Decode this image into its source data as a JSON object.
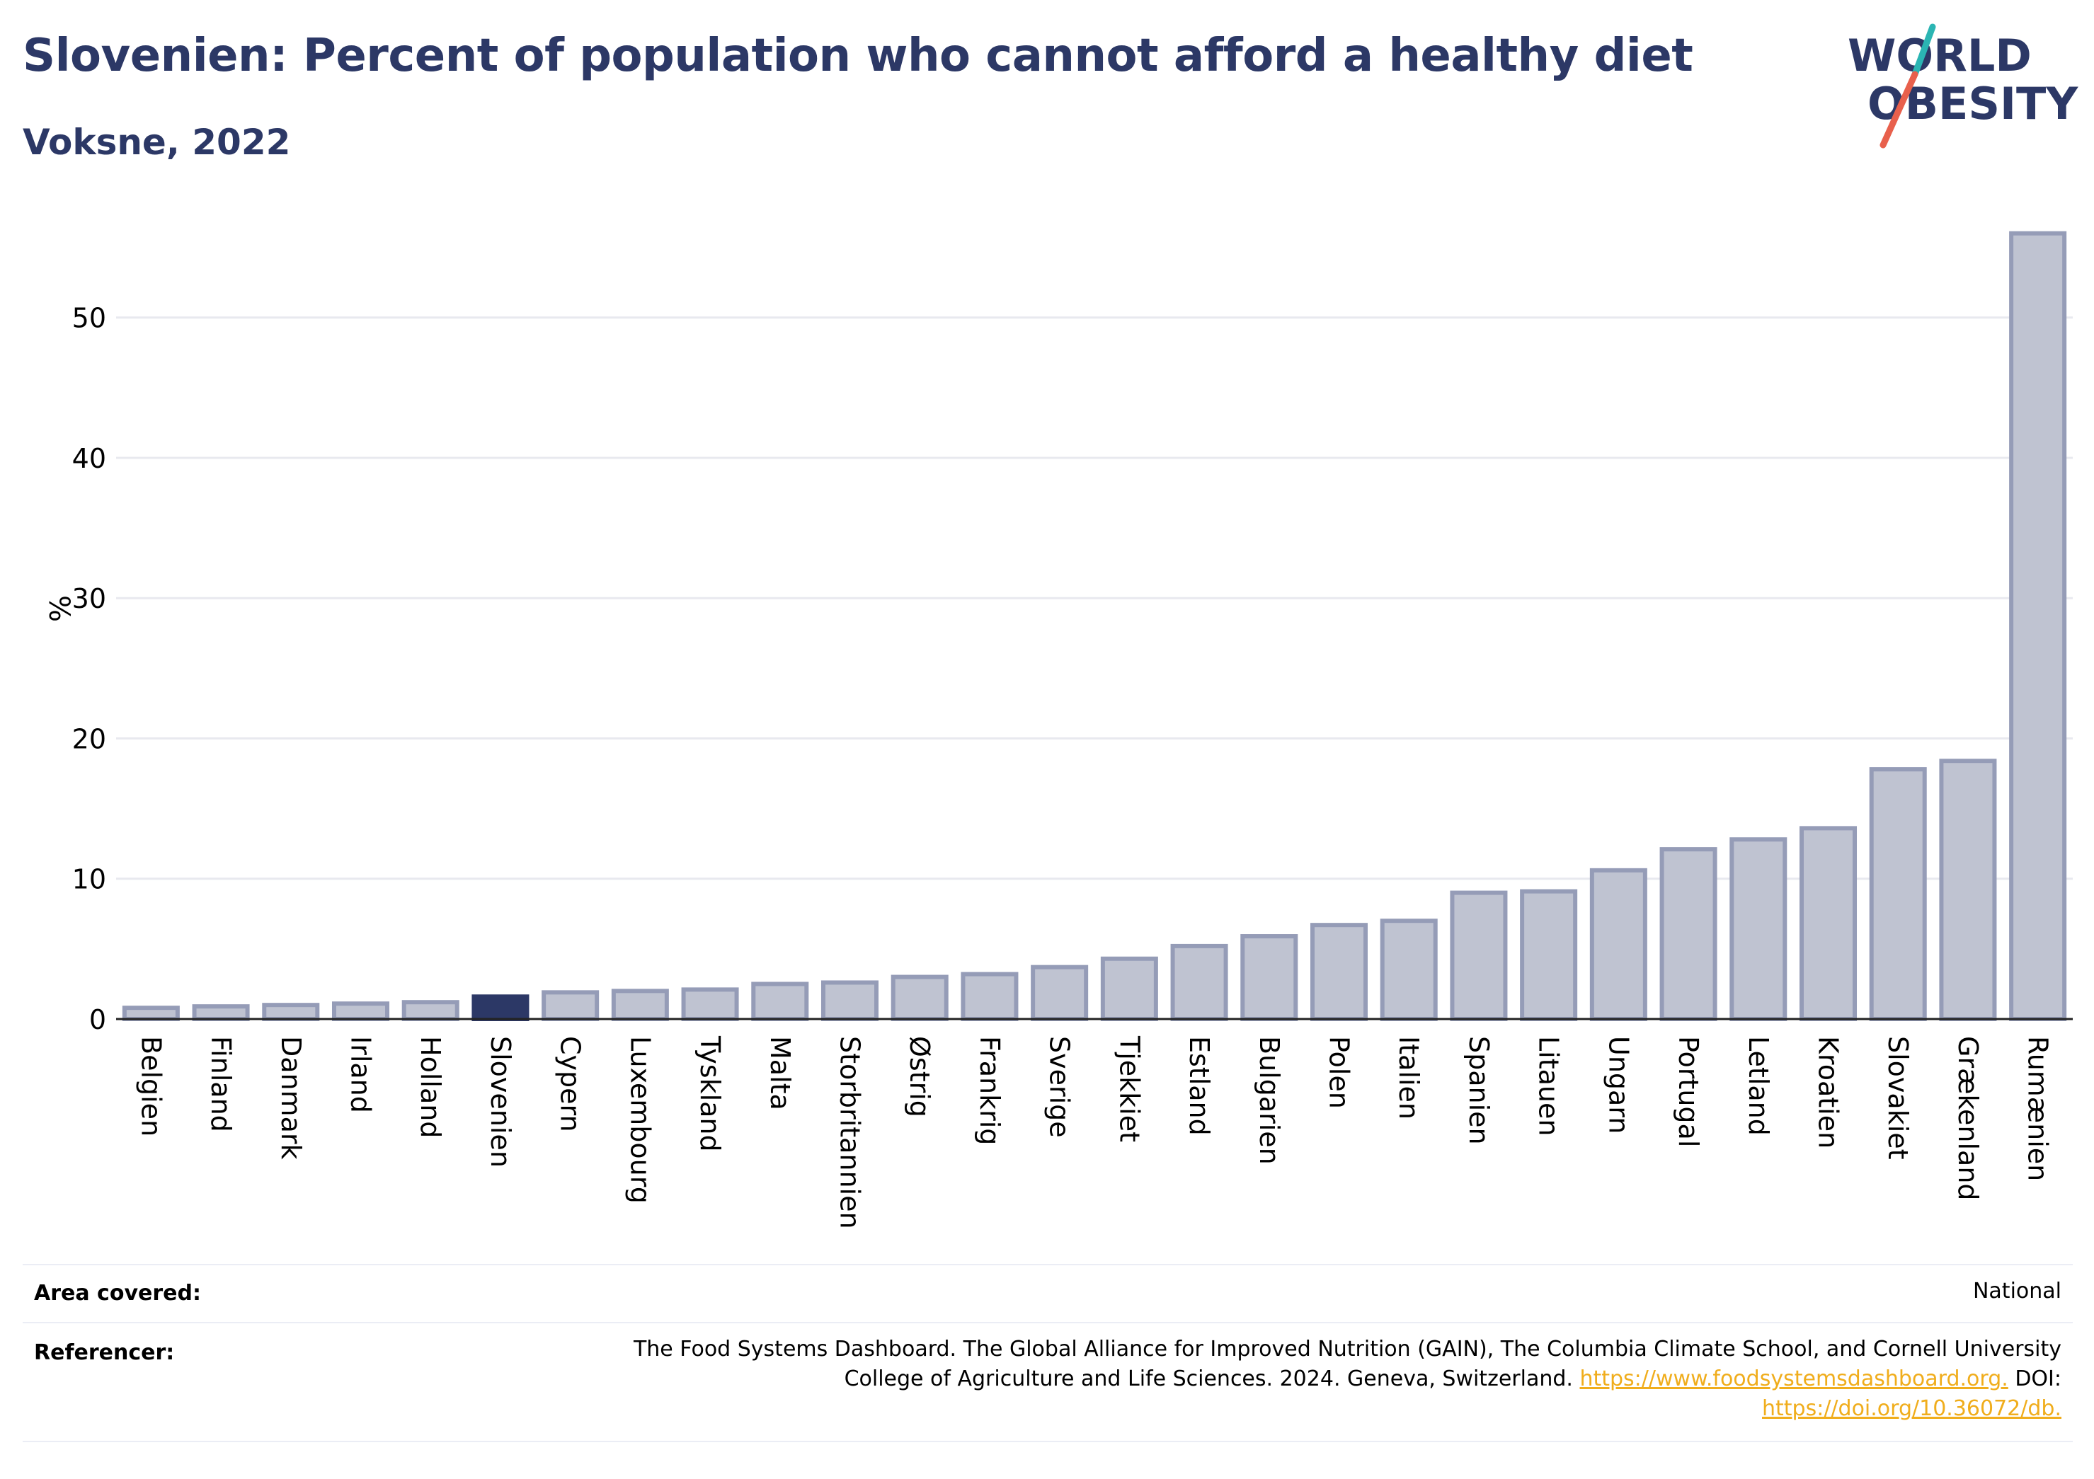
{
  "header": {
    "title": "Slovenien: Percent of population who cannot afford a healthy diet",
    "subtitle": "Voksne, 2022",
    "logo_line1": "WORLD",
    "logo_line2": "OBESITY"
  },
  "colors": {
    "title": "#2c3866",
    "bar_fill": "#bfc3d1",
    "bar_stroke": "#959cb7",
    "highlight_fill": "#2c3866",
    "grid": "#e8e9ef",
    "link": "#f0ad1c",
    "logo_teal": "#2bb5b3",
    "logo_red": "#e8604c"
  },
  "chart_data": {
    "type": "bar",
    "ylabel": "%",
    "xlabel": "",
    "ylim": [
      0,
      57.5
    ],
    "yticks": [
      0,
      10,
      20,
      30,
      40,
      50
    ],
    "grid": true,
    "highlight": "Slovenien",
    "categories": [
      "Belgien",
      "Finland",
      "Danmark",
      "Irland",
      "Holland",
      "Slovenien",
      "Cypern",
      "Luxembourg",
      "Tyskland",
      "Malta",
      "Storbritannien",
      "Østrig",
      "Frankrig",
      "Sverige",
      "Tjekkiet",
      "Estland",
      "Bulgarien",
      "Polen",
      "Italien",
      "Spanien",
      "Litauen",
      "Ungarn",
      "Portugal",
      "Letland",
      "Kroatien",
      "Slovakiet",
      "Grækenland",
      "Rumænien"
    ],
    "values": [
      0.8,
      0.9,
      1.0,
      1.1,
      1.2,
      1.6,
      1.9,
      2.0,
      2.1,
      2.5,
      2.6,
      3.0,
      3.2,
      3.7,
      4.3,
      5.2,
      5.9,
      6.7,
      7.0,
      9.0,
      9.1,
      10.6,
      12.1,
      12.8,
      13.6,
      17.8,
      18.4,
      56.0
    ]
  },
  "meta": {
    "area_label": "Area covered:",
    "area_value": "National",
    "ref_label": "Referencer:",
    "ref_line1": "The Food Systems Dashboard. The Global Alliance for Improved Nutrition (GAIN), The Columbia Climate School, and Cornell University",
    "ref_line2_text": "College of Agriculture and Life Sciences. 2024. Geneva, Switzerland. ",
    "ref_link1": "https://www.foodsystemsdashboard.org.",
    "ref_doi": " DOI:",
    "ref_link2": "https://doi.org/10.36072/db."
  }
}
